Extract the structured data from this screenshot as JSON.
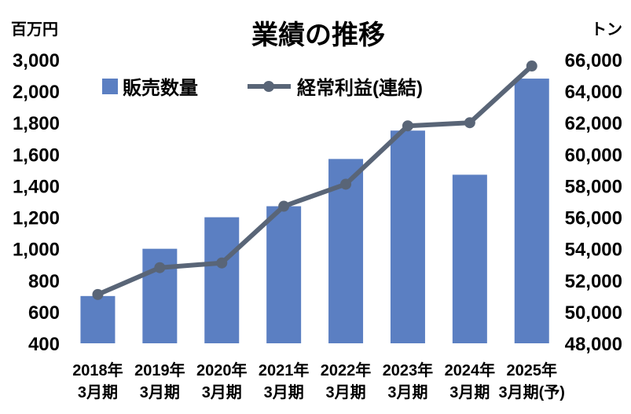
{
  "chart_data": {
    "type": "bar+line",
    "title": "業績の推移",
    "left_unit": "百万円",
    "right_unit": "トン",
    "categories": [
      [
        "2018年",
        "3月期"
      ],
      [
        "2019年",
        "3月期"
      ],
      [
        "2020年",
        "3月期"
      ],
      [
        "2021年",
        "3月期"
      ],
      [
        "2022年",
        "3月期"
      ],
      [
        "2023年",
        "3月期"
      ],
      [
        "2024年",
        "3月期"
      ],
      [
        "2025年",
        "3月期(予)"
      ]
    ],
    "series": [
      {
        "name": "販売数量",
        "type": "bar",
        "axis": "right",
        "color": "#5b7fc2",
        "values": [
          51000,
          54000,
          56000,
          56700,
          59700,
          61500,
          58700,
          64800
        ]
      },
      {
        "name": "経常利益(連結)",
        "type": "line",
        "axis": "left",
        "color": "#596577",
        "values": [
          710,
          880,
          910,
          1270,
          1410,
          1780,
          1800,
          2800
        ]
      }
    ],
    "left_axis": {
      "ticks": [
        "400",
        "600",
        "800",
        "1,000",
        "1,200",
        "1,400",
        "1,600",
        "1,800",
        "2,000",
        "3,000"
      ],
      "tick_values": [
        400,
        600,
        800,
        1000,
        1200,
        1400,
        1600,
        1800,
        2000,
        3000
      ]
    },
    "right_axis": {
      "min": 48000,
      "max": 66000,
      "ticks": [
        "48,000",
        "50,000",
        "52,000",
        "54,000",
        "56,000",
        "58,000",
        "60,000",
        "62,000",
        "64,000",
        "66,000"
      ]
    },
    "grid": false,
    "legend_position": "top-left"
  }
}
